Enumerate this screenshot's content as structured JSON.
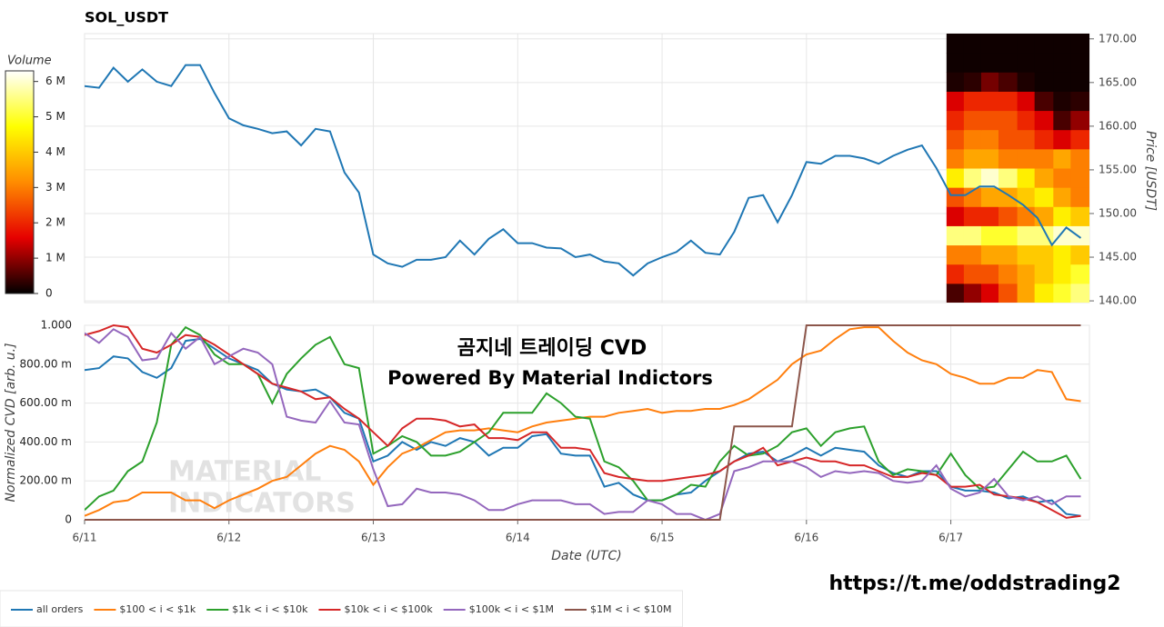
{
  "chart_data": [
    {
      "type": "line",
      "title": "SOL_USDT",
      "ylabel": "Price [USDT]",
      "x": [
        0,
        0.1,
        0.2,
        0.3,
        0.4,
        0.5,
        0.6,
        0.7,
        0.8,
        0.9,
        1,
        1.1,
        1.2,
        1.3,
        1.4,
        1.5,
        1.6,
        1.7,
        1.8,
        1.9,
        2,
        2.1,
        2.2,
        2.3,
        2.4,
        2.5,
        2.6,
        2.7,
        2.8,
        2.9,
        3,
        3.1,
        3.2,
        3.3,
        3.4,
        3.5,
        3.6,
        3.7,
        3.8,
        3.9,
        4,
        4.1,
        4.2,
        4.3,
        4.4,
        4.5,
        4.6,
        4.7,
        4.8,
        4.9,
        5,
        5.1,
        5.2,
        5.3,
        5.4,
        5.5,
        5.6,
        5.7,
        5.8,
        5.9,
        6,
        6.1,
        6.2,
        6.3,
        6.4,
        6.5,
        6.6,
        6.7,
        6.8,
        6.9
      ],
      "xlim": [
        0,
        6.96
      ],
      "xticks": [
        0,
        1,
        2,
        3,
        4,
        5,
        6
      ],
      "ylim": [
        139.8,
        170.6
      ],
      "yticks": [
        {
          "value": 140,
          "label": "140.00"
        },
        {
          "value": 145,
          "label": "145.00"
        },
        {
          "value": 150,
          "label": "150.00"
        },
        {
          "value": 155,
          "label": "155.00"
        },
        {
          "value": 160,
          "label": "160.00"
        },
        {
          "value": 165,
          "label": "165.00"
        },
        {
          "value": 170,
          "label": "170.00"
        }
      ],
      "grid": true,
      "series": [
        {
          "color": "#1f77b4",
          "values": [
            164.6,
            164.4,
            166.7,
            165.1,
            166.5,
            165.1,
            164.6,
            167,
            167,
            163.8,
            160.9,
            160.1,
            159.7,
            159.2,
            159.4,
            157.8,
            159.7,
            159.4,
            154.7,
            152.4,
            145.3,
            144.3,
            143.9,
            144.7,
            144.7,
            145,
            146.9,
            145.3,
            147.1,
            148.2,
            146.6,
            146.6,
            146.1,
            146,
            145,
            145.3,
            144.5,
            144.3,
            142.9,
            144.3,
            145,
            145.6,
            146.9,
            145.5,
            145.3,
            147.9,
            151.8,
            152.1,
            149,
            152.1,
            155.9,
            155.7,
            156.6,
            156.6,
            156.3,
            155.7,
            156.6,
            157.3,
            157.8,
            155.2,
            152.1,
            152.1,
            153.1,
            153.1,
            152.1,
            151,
            149.5,
            146.4,
            148.4,
            147.2
          ]
        }
      ],
      "heatmap": {
        "label": "Volume",
        "x_edges": [
          5.97,
          6.09,
          6.21,
          6.33,
          6.46,
          6.58,
          6.71,
          6.83,
          6.96
        ],
        "y_edges": [
          139.8,
          142,
          144.2,
          146.4,
          148.6,
          150.8,
          153,
          155.2,
          157.4,
          159.6,
          161.8,
          164,
          166.2,
          168.4,
          170.6
        ],
        "values": [
          [
            500000,
            1000000,
            1500000,
            2500000,
            3500000,
            4500000,
            5000000,
            5500000
          ],
          [
            2000000,
            2500000,
            2500000,
            3000000,
            3500000,
            4000000,
            4500000,
            5000000
          ],
          [
            3000000,
            3000000,
            3500000,
            3500000,
            4000000,
            4000000,
            4500000,
            4000000
          ],
          [
            5500000,
            5500000,
            5000000,
            5000000,
            5500000,
            5500000,
            6000000,
            6000000
          ],
          [
            1500000,
            2000000,
            2000000,
            2500000,
            3000000,
            3500000,
            4500000,
            4000000
          ],
          [
            2500000,
            3000000,
            3500000,
            3500000,
            4000000,
            4500000,
            3500000,
            3000000
          ],
          [
            4500000,
            5500000,
            6000000,
            5500000,
            4500000,
            3500000,
            3000000,
            3000000
          ],
          [
            3000000,
            3500000,
            3500000,
            3000000,
            3000000,
            3000000,
            3500000,
            3000000
          ],
          [
            2500000,
            3000000,
            3000000,
            2500000,
            2500000,
            2000000,
            1500000,
            2000000
          ],
          [
            2000000,
            2500000,
            2500000,
            2500000,
            2000000,
            1500000,
            500000,
            1000000
          ],
          [
            1500000,
            2000000,
            2000000,
            2000000,
            1500000,
            500000,
            200000,
            300000
          ],
          [
            200000,
            300000,
            800000,
            500000,
            200000,
            100000,
            100000,
            100000
          ],
          [
            100000,
            100000,
            100000,
            100000,
            100000,
            100000,
            100000,
            100000
          ],
          [
            100000,
            100000,
            100000,
            100000,
            100000,
            100000,
            100000,
            100000
          ]
        ],
        "colorscale": [
          "#000000",
          "#e60000",
          "#ff8c00",
          "#ffff00",
          "#ffffff"
        ],
        "clim": [
          0,
          6300000
        ],
        "cticks": [
          0,
          {
            "value": 1000000,
            "label": "1 M"
          },
          {
            "value": 2000000,
            "label": "2 M"
          },
          {
            "value": 3000000,
            "label": "3 M"
          },
          {
            "value": 4000000,
            "label": "4 M"
          },
          {
            "value": 5000000,
            "label": "5 M"
          },
          {
            "value": 6000000,
            "label": "6 M"
          }
        ]
      }
    },
    {
      "type": "line",
      "xlabel": "Date (UTC)",
      "ylabel": "Normalized CVD [arb. u.]",
      "x": [
        0,
        0.1,
        0.2,
        0.3,
        0.4,
        0.5,
        0.6,
        0.7,
        0.8,
        0.9,
        1,
        1.1,
        1.2,
        1.3,
        1.4,
        1.5,
        1.6,
        1.7,
        1.8,
        1.9,
        2,
        2.1,
        2.2,
        2.3,
        2.4,
        2.5,
        2.6,
        2.7,
        2.8,
        2.9,
        3,
        3.1,
        3.2,
        3.3,
        3.4,
        3.5,
        3.6,
        3.7,
        3.8,
        3.9,
        4,
        4.1,
        4.2,
        4.3,
        4.4,
        4.5,
        4.6,
        4.7,
        4.8,
        4.9,
        5,
        5.1,
        5.2,
        5.3,
        5.4,
        5.5,
        5.6,
        5.7,
        5.8,
        5.9,
        6,
        6.1,
        6.2,
        6.3,
        6.4,
        6.5,
        6.6,
        6.7,
        6.8,
        6.9
      ],
      "xlim": [
        0,
        6.96
      ],
      "xticks": [
        {
          "value": 0,
          "label": "6/11"
        },
        {
          "value": 1,
          "label": "6/12"
        },
        {
          "value": 2,
          "label": "6/13"
        },
        {
          "value": 3,
          "label": "6/14"
        },
        {
          "value": 4,
          "label": "6/15"
        },
        {
          "value": 5,
          "label": "6/16"
        },
        {
          "value": 6,
          "label": "6/17"
        }
      ],
      "ylim": [
        0,
        1
      ],
      "yticks": [
        0,
        {
          "value": 0.2,
          "label": "200.00 m"
        },
        {
          "value": 0.4,
          "label": "400.00 m"
        },
        {
          "value": 0.6,
          "label": "600.00 m"
        },
        {
          "value": 0.8,
          "label": "800.00 m"
        },
        {
          "value": 1,
          "label": "1.000"
        }
      ],
      "grid": true,
      "legend": "bottom-left",
      "annotations": [
        "곰지네 트레이딩 CVD",
        "Powered By Material Indictors"
      ],
      "watermark": [
        "MATERIAL",
        "INDICATORS"
      ],
      "series": [
        {
          "name": "all orders",
          "color": "#1f77b4",
          "values": [
            0.77,
            0.78,
            0.84,
            0.83,
            0.76,
            0.73,
            0.78,
            0.92,
            0.93,
            0.88,
            0.83,
            0.8,
            0.77,
            0.7,
            0.67,
            0.66,
            0.67,
            0.63,
            0.55,
            0.52,
            0.3,
            0.33,
            0.4,
            0.36,
            0.4,
            0.38,
            0.42,
            0.4,
            0.33,
            0.37,
            0.37,
            0.43,
            0.44,
            0.34,
            0.33,
            0.33,
            0.17,
            0.19,
            0.13,
            0.1,
            0.1,
            0.13,
            0.14,
            0.2,
            0.25,
            0.3,
            0.34,
            0.35,
            0.3,
            0.33,
            0.37,
            0.33,
            0.37,
            0.36,
            0.35,
            0.28,
            0.24,
            0.22,
            0.25,
            0.25,
            0.17,
            0.15,
            0.15,
            0.14,
            0.11,
            0.12,
            0.09,
            0.1,
            0.03,
            0.02
          ]
        },
        {
          "name": "$100 < i < $1k",
          "color": "#ff7f0e",
          "values": [
            0.02,
            0.05,
            0.09,
            0.1,
            0.14,
            0.14,
            0.14,
            0.1,
            0.1,
            0.06,
            0.1,
            0.13,
            0.16,
            0.2,
            0.22,
            0.28,
            0.34,
            0.38,
            0.36,
            0.3,
            0.18,
            0.27,
            0.34,
            0.37,
            0.41,
            0.45,
            0.46,
            0.46,
            0.47,
            0.46,
            0.45,
            0.48,
            0.5,
            0.51,
            0.52,
            0.53,
            0.53,
            0.55,
            0.56,
            0.57,
            0.55,
            0.56,
            0.56,
            0.57,
            0.57,
            0.59,
            0.62,
            0.67,
            0.72,
            0.8,
            0.85,
            0.87,
            0.93,
            0.98,
            0.99,
            0.99,
            0.92,
            0.86,
            0.82,
            0.8,
            0.75,
            0.73,
            0.7,
            0.7,
            0.73,
            0.73,
            0.77,
            0.76,
            0.62,
            0.61
          ]
        },
        {
          "name": "$1k < i < $10k",
          "color": "#2ca02c",
          "values": [
            0.05,
            0.12,
            0.15,
            0.25,
            0.3,
            0.5,
            0.9,
            0.99,
            0.95,
            0.85,
            0.8,
            0.8,
            0.75,
            0.6,
            0.75,
            0.83,
            0.9,
            0.94,
            0.8,
            0.78,
            0.34,
            0.38,
            0.43,
            0.4,
            0.33,
            0.33,
            0.35,
            0.4,
            0.45,
            0.55,
            0.55,
            0.55,
            0.65,
            0.6,
            0.53,
            0.52,
            0.3,
            0.27,
            0.2,
            0.1,
            0.1,
            0.13,
            0.18,
            0.17,
            0.3,
            0.38,
            0.33,
            0.34,
            0.38,
            0.45,
            0.47,
            0.38,
            0.45,
            0.47,
            0.48,
            0.3,
            0.23,
            0.26,
            0.25,
            0.23,
            0.34,
            0.23,
            0.16,
            0.17,
            0.26,
            0.35,
            0.3,
            0.3,
            0.33,
            0.21
          ]
        },
        {
          "name": "$10k < i < $100k",
          "color": "#d62728",
          "values": [
            0.95,
            0.97,
            1,
            0.99,
            0.88,
            0.86,
            0.9,
            0.95,
            0.94,
            0.9,
            0.85,
            0.8,
            0.75,
            0.7,
            0.68,
            0.66,
            0.62,
            0.63,
            0.57,
            0.52,
            0.45,
            0.38,
            0.47,
            0.52,
            0.52,
            0.51,
            0.48,
            0.49,
            0.42,
            0.42,
            0.41,
            0.45,
            0.45,
            0.37,
            0.37,
            0.36,
            0.24,
            0.22,
            0.21,
            0.2,
            0.2,
            0.21,
            0.22,
            0.23,
            0.25,
            0.3,
            0.33,
            0.37,
            0.28,
            0.3,
            0.32,
            0.3,
            0.3,
            0.28,
            0.28,
            0.25,
            0.22,
            0.22,
            0.24,
            0.23,
            0.17,
            0.17,
            0.18,
            0.13,
            0.12,
            0.11,
            0.09,
            0.05,
            0.01,
            0.02
          ]
        },
        {
          "name": "$100k < i < $1M",
          "color": "#9467bd",
          "values": [
            0.96,
            0.91,
            0.98,
            0.94,
            0.82,
            0.83,
            0.96,
            0.88,
            0.94,
            0.8,
            0.84,
            0.88,
            0.86,
            0.8,
            0.53,
            0.51,
            0.5,
            0.61,
            0.5,
            0.49,
            0.26,
            0.07,
            0.08,
            0.16,
            0.14,
            0.14,
            0.13,
            0.1,
            0.05,
            0.05,
            0.08,
            0.1,
            0.1,
            0.1,
            0.08,
            0.08,
            0.03,
            0.04,
            0.04,
            0.1,
            0.08,
            0.03,
            0.03,
            0,
            0.03,
            0.25,
            0.27,
            0.3,
            0.3,
            0.3,
            0.27,
            0.22,
            0.25,
            0.24,
            0.25,
            0.24,
            0.2,
            0.19,
            0.2,
            0.28,
            0.16,
            0.12,
            0.14,
            0.21,
            0.12,
            0.1,
            0.12,
            0.08,
            0.12,
            0.12
          ]
        },
        {
          "name": "$1M < i < $10M",
          "color": "#8c564b",
          "values": [
            0,
            0,
            0,
            0,
            0,
            0,
            0,
            0,
            0,
            0,
            0,
            0,
            0,
            0,
            0,
            0,
            0,
            0,
            0,
            0,
            0,
            0,
            0,
            0,
            0,
            0,
            0,
            0,
            0,
            0,
            0,
            0,
            0,
            0,
            0,
            0,
            0,
            0,
            0,
            0,
            0,
            0,
            0,
            0,
            0,
            0.48,
            0.48,
            0.48,
            0.48,
            0.48,
            1,
            1,
            1,
            1,
            1,
            1,
            1,
            1,
            1,
            1,
            1,
            1,
            1,
            1,
            1,
            1,
            1,
            1,
            1,
            1
          ]
        }
      ]
    }
  ],
  "footer_link": "https://t.me/oddstrading2"
}
